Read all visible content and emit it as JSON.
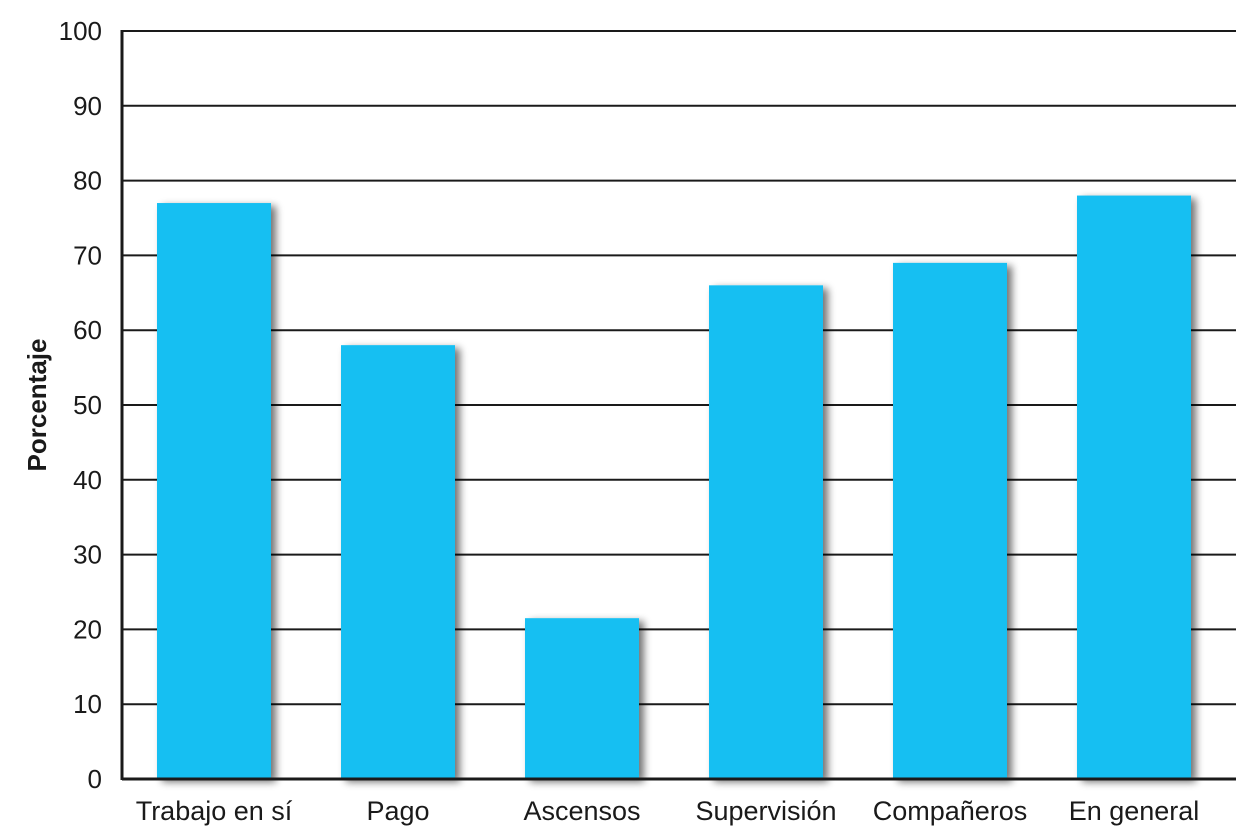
{
  "chart_data": {
    "type": "bar",
    "title": "",
    "xlabel": "",
    "ylabel": "Porcentaje",
    "ylim": [
      0,
      100
    ],
    "yticks": [
      0,
      10,
      20,
      30,
      40,
      50,
      60,
      70,
      80,
      90,
      100
    ],
    "grid": true,
    "categories": [
      "Trabajo en sí",
      "Pago",
      "Ascensos",
      "Supervisión",
      "Compañeros",
      "En general"
    ],
    "values": [
      77,
      58,
      21.5,
      66,
      69,
      78
    ],
    "bar_color": "#16BFF2",
    "bar_shadow_color": "#6b6b6b",
    "gridline_color": "#1a1a1a"
  }
}
